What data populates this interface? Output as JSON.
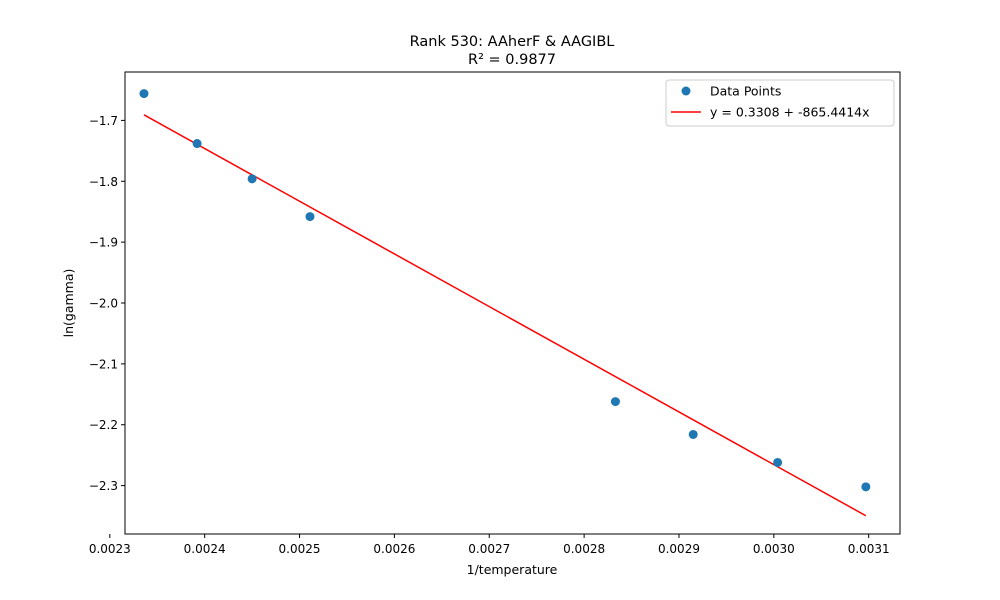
{
  "chart_data": {
    "type": "scatter",
    "title": "Rank 530: AAherF & AAGIBL",
    "subtitle": "R² = 0.9877",
    "xlabel": "1/temperature",
    "ylabel": "ln(gamma)",
    "xlim": [
      0.002316,
      0.003133
    ],
    "ylim": [
      -2.3795,
      -1.6205
    ],
    "xticks": [
      0.0023,
      0.0024,
      0.0025,
      0.0026,
      0.0027,
      0.0028,
      0.0029,
      0.003,
      0.0031
    ],
    "xtick_labels": [
      "0.0023",
      "0.0024",
      "0.0025",
      "0.0026",
      "0.0027",
      "0.0028",
      "0.0029",
      "0.0030",
      "0.0031"
    ],
    "yticks": [
      -1.7,
      -1.8,
      -1.9,
      -2.0,
      -2.1,
      -2.2,
      -2.3
    ],
    "ytick_labels": [
      "−1.7",
      "−1.8",
      "−1.9",
      "−2.0",
      "−2.1",
      "−2.2",
      "−2.3"
    ],
    "grid": false,
    "legend_position": "top-right",
    "series": [
      {
        "name": "Data Points",
        "kind": "scatter",
        "color": "#1f77b4",
        "x": [
          0.002336,
          0.002392,
          0.00245,
          0.002511,
          0.002833,
          0.002915,
          0.003004,
          0.003097
        ],
        "y": [
          -1.656,
          -1.738,
          -1.796,
          -1.858,
          -2.162,
          -2.216,
          -2.262,
          -2.302
        ]
      },
      {
        "name": "y = 0.3308 + -865.4414x",
        "kind": "line",
        "color": "#ff0000",
        "intercept": 0.3308,
        "slope": -865.4414,
        "x": [
          0.002336,
          0.003097
        ]
      }
    ]
  }
}
